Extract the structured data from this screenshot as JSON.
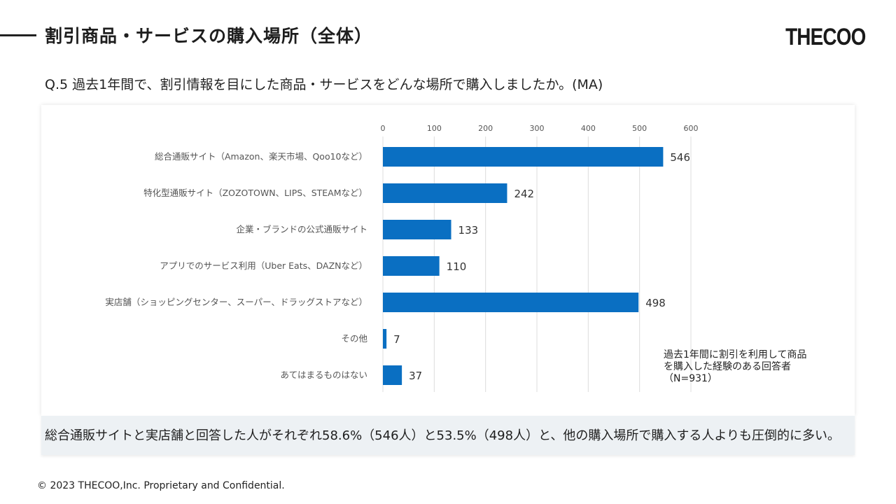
{
  "header": {
    "title": "割引商品・サービスの購入場所（全体）",
    "logo_text": "THECOO"
  },
  "question": "Q.5  過去1年間で、割引情報を目にした商品・サービスをどんな場所で購入しましたか。(MA)",
  "chart_data": {
    "type": "bar",
    "orientation": "horizontal",
    "categories": [
      "総合通販サイト（Amazon、楽天市場、Qoo10など）",
      "特化型通販サイト（ZOZOTOWN、LIPS、STEAMなど）",
      "企業・ブランドの公式通販サイト",
      "アプリでのサービス利用（Uber Eats、DAZNなど）",
      "実店舗（ショッピングセンター、スーパー、ドラッグストアなど）",
      "その他",
      "あてはまるものはない"
    ],
    "values": [
      546,
      242,
      133,
      110,
      498,
      7,
      37
    ],
    "value_labels": [
      "546",
      "242",
      "133",
      "110",
      "498",
      "7",
      "37"
    ],
    "xlim": [
      0,
      600
    ],
    "ticks": [
      0,
      100,
      200,
      300,
      400,
      500,
      600
    ],
    "tick_labels": [
      "0",
      "100",
      "200",
      "300",
      "400",
      "500",
      "600"
    ],
    "axis_position": "top",
    "grid": true,
    "bar_color": "#0a6fc2"
  },
  "note_lines": [
    "過去1年間に割引を利用して商品",
    "を購入した経験のある回答者",
    "（N=931）"
  ],
  "summary": "総合通販サイトと実店舗と回答した人がそれぞれ58.6%（546人）と53.5%（498人）と、他の購入場所で購入する人よりも圧倒的に多い。",
  "footer": "© 2023 THECOO,Inc. Proprietary and Confidential."
}
